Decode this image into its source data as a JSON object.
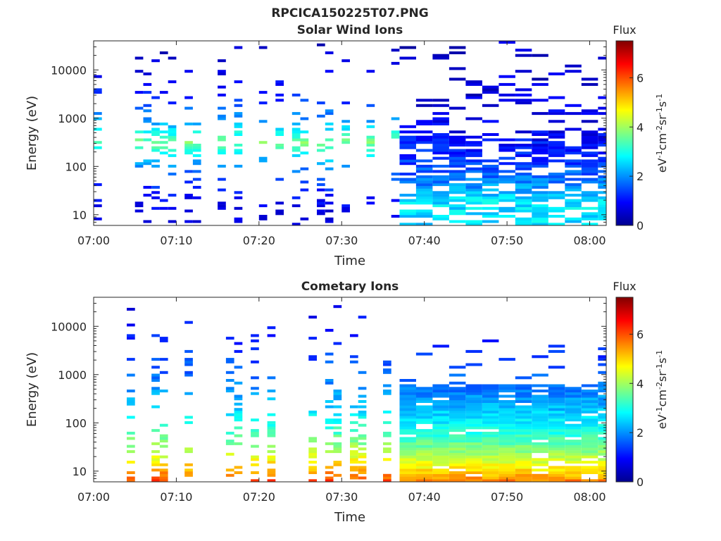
{
  "figure_title": "RPCICA150225T07.PNG",
  "colormap": [
    "#00008f",
    "#0000ff",
    "#0080ff",
    "#00ffff",
    "#80ff80",
    "#ffff00",
    "#ff8000",
    "#ff0000",
    "#800000"
  ],
  "chart_data": [
    {
      "type": "heatmap",
      "title": "Solar Wind Ions",
      "xlabel": "Time",
      "ylabel": "Energy (eV)",
      "x_ticks": [
        "07:00",
        "07:10",
        "07:20",
        "07:30",
        "07:40",
        "07:50",
        "08:00"
      ],
      "x_tick_minutes": [
        0,
        10,
        20,
        30,
        40,
        50,
        60
      ],
      "xlim_minutes": [
        0,
        62
      ],
      "y_scale": "log",
      "y_ticks": [
        "10",
        "100",
        "1000",
        "10000"
      ],
      "y_tick_values": [
        10,
        100,
        1000,
        10000
      ],
      "ylim": [
        6,
        40000
      ],
      "colorbar": {
        "title": "Flux",
        "label": "eV-1cm-2sr-1s-1",
        "ticks": [
          "0",
          "2",
          "4",
          "6"
        ],
        "range": [
          0,
          7.5
        ]
      },
      "regime_change_minute": 37,
      "flux_peak_energy_eV": 300
    },
    {
      "type": "heatmap",
      "title": "Cometary Ions",
      "xlabel": "Time",
      "ylabel": "Energy (eV)",
      "x_ticks": [
        "07:00",
        "07:10",
        "07:20",
        "07:30",
        "07:40",
        "07:50",
        "08:00"
      ],
      "x_tick_minutes": [
        0,
        10,
        20,
        30,
        40,
        50,
        60
      ],
      "xlim_minutes": [
        0,
        62
      ],
      "y_scale": "log",
      "y_ticks": [
        "10",
        "100",
        "1000",
        "10000"
      ],
      "y_tick_values": [
        10,
        100,
        1000,
        10000
      ],
      "ylim": [
        6,
        40000
      ],
      "colorbar": {
        "title": "Flux",
        "label": "eV-1cm-2sr-1s-1",
        "ticks": [
          "0",
          "2",
          "4",
          "6"
        ],
        "range": [
          0,
          7.5
        ]
      },
      "regime_change_minute": 37,
      "flux_peak_energy_eV": 10
    }
  ]
}
